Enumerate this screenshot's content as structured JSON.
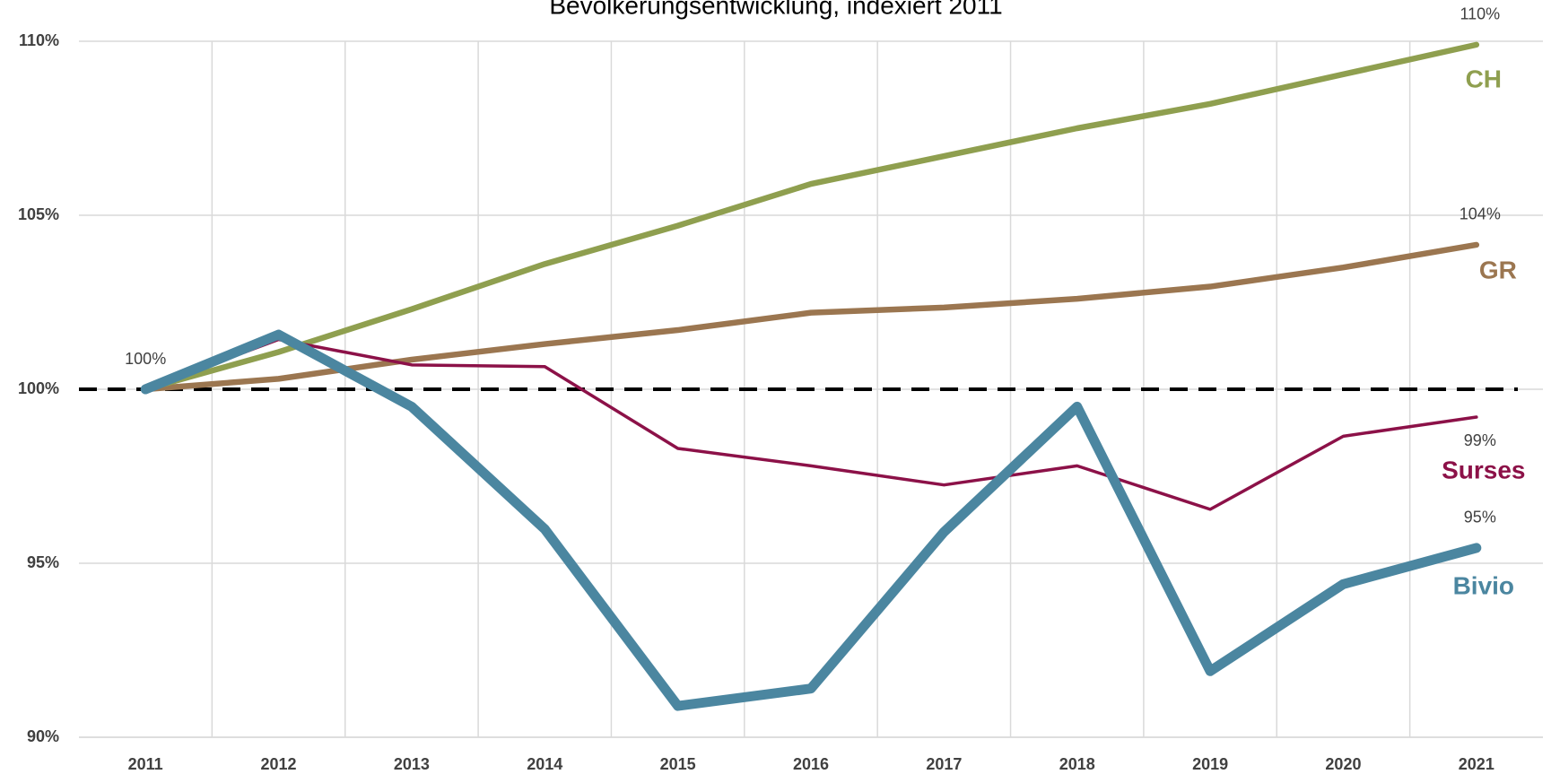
{
  "chart_data": {
    "type": "line",
    "title": "Bevölkerungsentwicklung, indexiert 2011",
    "categories": [
      "2011",
      "2012",
      "2013",
      "2014",
      "2015",
      "2016",
      "2017",
      "2018",
      "2019",
      "2020",
      "2021"
    ],
    "series": [
      {
        "name": "CH",
        "color": "#8f9f4f",
        "values": [
          100,
          101.07,
          102.3,
          103.6,
          104.7,
          105.9,
          106.7,
          107.5,
          108.2,
          109.05,
          109.9
        ],
        "value_labels": [
          "100%",
          null,
          null,
          null,
          null,
          null,
          null,
          null,
          null,
          null,
          "110%"
        ]
      },
      {
        "name": "GR",
        "color": "#9b7650",
        "values": [
          100,
          100.3,
          100.85,
          101.3,
          101.7,
          102.2,
          102.35,
          102.6,
          102.95,
          103.5,
          104.15
        ],
        "value_labels": [
          null,
          null,
          null,
          null,
          null,
          null,
          null,
          null,
          null,
          null,
          "104%"
        ]
      },
      {
        "name": "Surses",
        "color": "#8c1148",
        "values": [
          100,
          101.43,
          100.7,
          100.65,
          98.3,
          97.8,
          97.25,
          97.8,
          96.55,
          98.65,
          99.2
        ],
        "value_labels": [
          null,
          null,
          null,
          null,
          null,
          null,
          null,
          null,
          null,
          null,
          "99%"
        ]
      },
      {
        "name": "Bivio",
        "color": "#4b86a0",
        "values": [
          100,
          101.57,
          99.5,
          95.98,
          90.9,
          91.4,
          95.9,
          99.5,
          91.9,
          94.4,
          95.44
        ],
        "value_labels": [
          null,
          null,
          null,
          null,
          null,
          null,
          null,
          null,
          null,
          null,
          "95%"
        ]
      }
    ],
    "ylim": [
      90,
      110
    ],
    "yticks": [
      {
        "value": 90,
        "label": "90%"
      },
      {
        "value": 95,
        "label": "95%"
      },
      {
        "value": 100,
        "label": "100%"
      },
      {
        "value": 105,
        "label": "105%"
      },
      {
        "value": 110,
        "label": "110%"
      }
    ],
    "reference_line": 100,
    "grid": true
  }
}
